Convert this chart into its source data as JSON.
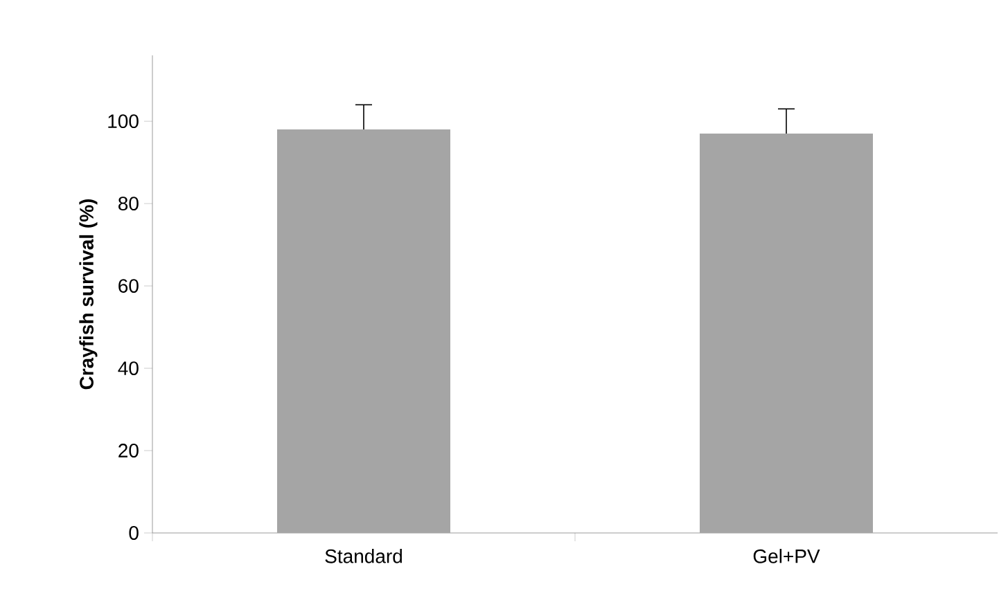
{
  "chart_data": {
    "type": "bar",
    "ylabel": "Crayfish survival (%)",
    "categories": [
      "Standard",
      "Gel+PV"
    ],
    "values": [
      98,
      97
    ],
    "errors": [
      [
        98,
        104
      ],
      [
        97,
        103
      ]
    ],
    "color": "#a5a5a5",
    "ylim": [
      0,
      116
    ],
    "yticks": [
      0,
      20,
      40,
      60,
      80,
      100
    ],
    "grid": false
  }
}
